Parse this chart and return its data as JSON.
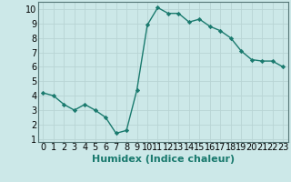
{
  "x": [
    0,
    1,
    2,
    3,
    4,
    5,
    6,
    7,
    8,
    9,
    10,
    11,
    12,
    13,
    14,
    15,
    16,
    17,
    18,
    19,
    20,
    21,
    22,
    23
  ],
  "y": [
    4.2,
    4.0,
    3.4,
    3.0,
    3.4,
    3.0,
    2.5,
    1.4,
    1.6,
    4.4,
    8.9,
    10.1,
    9.7,
    9.7,
    9.1,
    9.3,
    8.8,
    8.5,
    8.0,
    7.1,
    6.5,
    6.4,
    6.4,
    6.0
  ],
  "title": "",
  "xlabel": "Humidex (Indice chaleur)",
  "ylabel": "",
  "xlim": [
    -0.5,
    23.5
  ],
  "ylim": [
    0.8,
    10.5
  ],
  "yticks": [
    1,
    2,
    3,
    4,
    5,
    6,
    7,
    8,
    9,
    10
  ],
  "xticks": [
    0,
    1,
    2,
    3,
    4,
    5,
    6,
    7,
    8,
    9,
    10,
    11,
    12,
    13,
    14,
    15,
    16,
    17,
    18,
    19,
    20,
    21,
    22,
    23
  ],
  "line_color": "#1a7a6e",
  "marker": "D",
  "marker_size": 2.2,
  "bg_color": "#cce8e8",
  "grid_color": "#b8d4d4",
  "axis_bg": "#cce8e8",
  "xlabel_fontsize": 8,
  "tick_fontsize": 7,
  "line_width": 1.0
}
